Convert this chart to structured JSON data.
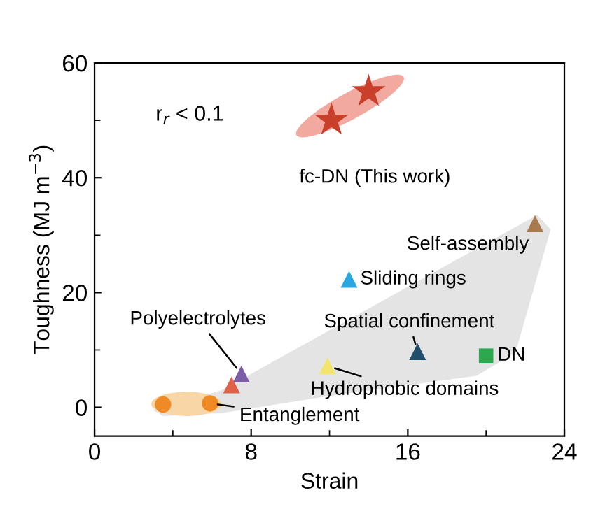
{
  "chart_data": {
    "type": "scatter",
    "xlabel": "Strain",
    "ylabel": "Toughness (MJ m$^{−3}$)",
    "xlim": [
      0,
      24
    ],
    "xticks": [
      0,
      8,
      16,
      24
    ],
    "ylim": [
      -5,
      60
    ],
    "yticks": [
      0,
      20,
      40,
      60
    ],
    "grid": false,
    "legend": false,
    "series": [
      {
        "color": "#c8402a",
        "marker": "star",
        "x": [
          12.1,
          14.0
        ],
        "values": [
          50,
          55
        ]
      },
      {
        "color": "#a97a4e",
        "marker": "triangle",
        "x": [
          22.5
        ],
        "values": [
          32
        ]
      },
      {
        "color": "#2aa7e0",
        "marker": "triangle",
        "x": [
          13.0
        ],
        "values": [
          22.3
        ]
      },
      {
        "color": "#1f4e6b",
        "marker": "triangle",
        "x": [
          16.5
        ],
        "values": [
          9.7
        ]
      },
      {
        "color": "#2ea84f",
        "marker": "square",
        "x": [
          20.0
        ],
        "values": [
          9.0
        ]
      },
      {
        "color": "#f3e46c",
        "marker": "triangle",
        "x": [
          11.9
        ],
        "values": [
          7.2
        ]
      },
      {
        "color": "#7b5ea7",
        "marker": "triangle",
        "x": [
          7.5
        ],
        "values": [
          5.8
        ]
      },
      {
        "color": "#e0604a",
        "marker": "triangle",
        "x": [
          7.0
        ],
        "values": [
          3.9
        ]
      },
      {
        "color": "#f08a24",
        "marker": "circle",
        "x": [
          3.5,
          5.9
        ],
        "values": [
          0.5,
          0.7
        ]
      }
    ],
    "annotations": [
      "r$_{r}$ < 0.1",
      {
        "text": "fc-DN (This work)",
        "x": 12.1,
        "y": 50
      },
      {
        "text": "Self-assembly",
        "x": 22.5,
        "y": 32
      },
      {
        "text": "Sliding rings",
        "x": 13.0,
        "y": 22.3
      },
      {
        "text": "Spatial confinement",
        "x": 16.5,
        "y": 9.7
      },
      {
        "text": "DN",
        "x": 20.0,
        "y": 9.0
      },
      {
        "text": "Hydrophobic domains",
        "x": 11.9,
        "y": 7.2
      },
      {
        "text": "Polyelectrolytes",
        "x": 7.5,
        "y": 5.8
      },
      {
        "text": "Entanglement",
        "x": 5.9,
        "y": 0.7
      }
    ]
  }
}
